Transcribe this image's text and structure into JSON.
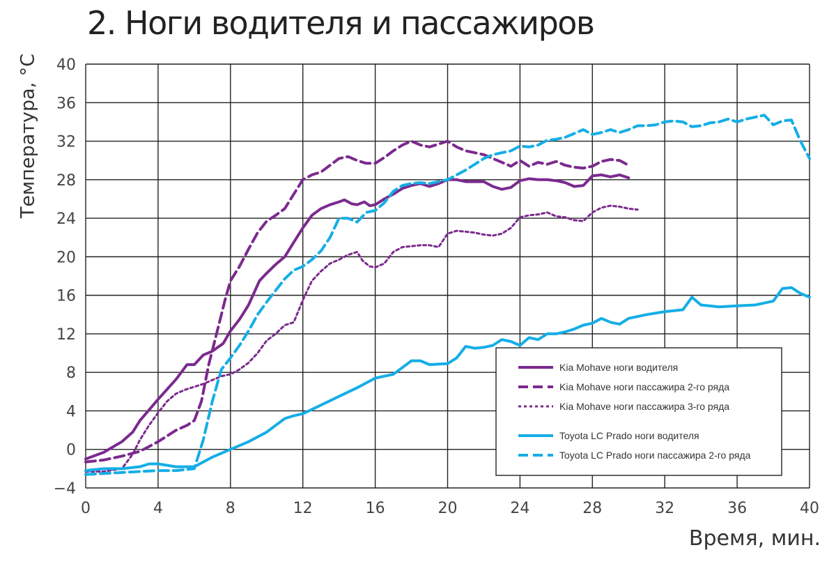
{
  "chart_data": {
    "type": "line",
    "title": "2. Ноги водителя и пассажиров",
    "xlabel": "Время, мин.",
    "ylabel": "Температура, °С",
    "xlim": [
      0,
      40
    ],
    "ylim": [
      -4,
      40
    ],
    "x_ticks": [
      0,
      4,
      8,
      12,
      16,
      20,
      24,
      28,
      32,
      36,
      40
    ],
    "y_ticks": [
      -4,
      0,
      4,
      8,
      12,
      16,
      20,
      24,
      28,
      32,
      36,
      40
    ],
    "x_tick_labels": [
      "0",
      "4",
      "8",
      "12",
      "16",
      "20",
      "24",
      "28",
      "32",
      "36",
      "40"
    ],
    "y_tick_labels": [
      "−4",
      "0",
      "4",
      "8",
      "12",
      "16",
      "20",
      "24",
      "28",
      "32",
      "36",
      "40"
    ],
    "grid": true,
    "legend_position": "bottom-right",
    "series": [
      {
        "name": "Kia Mohave ноги водителя",
        "color": "#7b2a8e",
        "style": "solid",
        "points": [
          [
            0,
            -1
          ],
          [
            1,
            -0.3
          ],
          [
            2,
            0.8
          ],
          [
            2.6,
            1.8
          ],
          [
            3,
            3
          ],
          [
            4,
            5.2
          ],
          [
            5,
            7.3
          ],
          [
            5.6,
            8.8
          ],
          [
            6,
            8.8
          ],
          [
            6.5,
            9.8
          ],
          [
            7,
            10.2
          ],
          [
            7.6,
            11
          ],
          [
            8,
            12.3
          ],
          [
            8.5,
            13.5
          ],
          [
            9,
            15
          ],
          [
            9.6,
            17.5
          ],
          [
            10,
            18.3
          ],
          [
            10.5,
            19.2
          ],
          [
            11,
            20
          ],
          [
            11.5,
            21.5
          ],
          [
            12,
            23
          ],
          [
            12.5,
            24.3
          ],
          [
            13,
            25
          ],
          [
            13.5,
            25.4
          ],
          [
            14,
            25.7
          ],
          [
            14.3,
            25.9
          ],
          [
            14.7,
            25.5
          ],
          [
            15,
            25.4
          ],
          [
            15.4,
            25.7
          ],
          [
            15.7,
            25.3
          ],
          [
            16,
            25.4
          ],
          [
            16.5,
            26
          ],
          [
            17,
            26.5
          ],
          [
            17.5,
            27.1
          ],
          [
            18,
            27.4
          ],
          [
            18.5,
            27.6
          ],
          [
            19,
            27.3
          ],
          [
            19.5,
            27.6
          ],
          [
            20,
            28
          ],
          [
            20.5,
            28
          ],
          [
            21,
            27.8
          ],
          [
            21.5,
            27.8
          ],
          [
            22,
            27.8
          ],
          [
            22.5,
            27.3
          ],
          [
            23,
            27
          ],
          [
            23.5,
            27.2
          ],
          [
            24,
            27.9
          ],
          [
            24.5,
            28.1
          ],
          [
            25,
            28
          ],
          [
            25.5,
            28
          ],
          [
            26,
            27.9
          ],
          [
            26.5,
            27.7
          ],
          [
            27,
            27.3
          ],
          [
            27.5,
            27.4
          ],
          [
            28,
            28.4
          ],
          [
            28.5,
            28.5
          ],
          [
            29,
            28.3
          ],
          [
            29.5,
            28.5
          ],
          [
            30,
            28.2
          ]
        ]
      },
      {
        "name": "Kia Mohave ноги пассажира 2-го ряда",
        "color": "#7b2a8e",
        "style": "dashed",
        "points": [
          [
            0,
            -1.3
          ],
          [
            1,
            -1.1
          ],
          [
            2,
            -0.7
          ],
          [
            3,
            -0.2
          ],
          [
            4,
            0.8
          ],
          [
            5,
            2
          ],
          [
            5.6,
            2.5
          ],
          [
            6,
            3
          ],
          [
            6.4,
            5
          ],
          [
            6.8,
            8.8
          ],
          [
            7.3,
            12.5
          ],
          [
            7.7,
            15.5
          ],
          [
            8,
            17.5
          ],
          [
            8.5,
            19
          ],
          [
            9,
            20.8
          ],
          [
            9.5,
            22.5
          ],
          [
            10,
            23.7
          ],
          [
            10.5,
            24.3
          ],
          [
            11,
            25
          ],
          [
            11.5,
            26.5
          ],
          [
            12,
            28
          ],
          [
            12.5,
            28.5
          ],
          [
            13,
            28.8
          ],
          [
            13.5,
            29.5
          ],
          [
            14,
            30.2
          ],
          [
            14.5,
            30.4
          ],
          [
            15,
            30
          ],
          [
            15.5,
            29.7
          ],
          [
            16,
            29.7
          ],
          [
            16.5,
            30.3
          ],
          [
            17,
            31
          ],
          [
            17.5,
            31.6
          ],
          [
            18,
            32
          ],
          [
            18.5,
            31.6
          ],
          [
            19,
            31.4
          ],
          [
            19.5,
            31.7
          ],
          [
            20,
            32
          ],
          [
            20.5,
            31.4
          ],
          [
            21,
            31
          ],
          [
            21.5,
            30.8
          ],
          [
            22,
            30.6
          ],
          [
            22.5,
            30.2
          ],
          [
            23,
            29.8
          ],
          [
            23.5,
            29.4
          ],
          [
            24,
            30
          ],
          [
            24.5,
            29.4
          ],
          [
            25,
            29.8
          ],
          [
            25.5,
            29.6
          ],
          [
            26,
            29.9
          ],
          [
            26.5,
            29.5
          ],
          [
            27,
            29.3
          ],
          [
            27.5,
            29.2
          ],
          [
            28,
            29.4
          ],
          [
            28.5,
            29.9
          ],
          [
            29,
            30.1
          ],
          [
            29.5,
            30
          ],
          [
            30,
            29.5
          ]
        ]
      },
      {
        "name": "Kia Mohave ноги пассажира 3-го ряда",
        "color": "#7b2a8e",
        "style": "dotted",
        "points": [
          [
            0,
            -2.3
          ],
          [
            1,
            -2.3
          ],
          [
            2,
            -2
          ],
          [
            2.6,
            -0.5
          ],
          [
            3,
            1
          ],
          [
            3.5,
            2.5
          ],
          [
            4,
            3.8
          ],
          [
            4.5,
            5
          ],
          [
            5,
            5.8
          ],
          [
            5.5,
            6.2
          ],
          [
            6,
            6.5
          ],
          [
            6.5,
            6.8
          ],
          [
            7,
            7.2
          ],
          [
            7.5,
            7.6
          ],
          [
            8,
            7.8
          ],
          [
            8.5,
            8.3
          ],
          [
            9,
            9
          ],
          [
            9.5,
            10
          ],
          [
            10,
            11.3
          ],
          [
            10.5,
            12
          ],
          [
            11,
            12.9
          ],
          [
            11.5,
            13.2
          ],
          [
            12,
            15.5
          ],
          [
            12.5,
            17.5
          ],
          [
            13,
            18.5
          ],
          [
            13.5,
            19.3
          ],
          [
            14,
            19.7
          ],
          [
            14.5,
            20.2
          ],
          [
            15,
            20.5
          ],
          [
            15.3,
            19.6
          ],
          [
            15.7,
            19
          ],
          [
            16,
            18.9
          ],
          [
            16.5,
            19.3
          ],
          [
            17,
            20.5
          ],
          [
            17.5,
            21
          ],
          [
            18,
            21.1
          ],
          [
            18.5,
            21.2
          ],
          [
            19,
            21.2
          ],
          [
            19.5,
            21
          ],
          [
            20,
            22.4
          ],
          [
            20.5,
            22.7
          ],
          [
            21,
            22.6
          ],
          [
            21.5,
            22.5
          ],
          [
            22,
            22.3
          ],
          [
            22.5,
            22.2
          ],
          [
            23,
            22.4
          ],
          [
            23.5,
            23
          ],
          [
            24,
            24.1
          ],
          [
            24.5,
            24.3
          ],
          [
            25,
            24.4
          ],
          [
            25.5,
            24.6
          ],
          [
            26,
            24.2
          ],
          [
            26.5,
            24.1
          ],
          [
            27,
            23.8
          ],
          [
            27.5,
            23.7
          ],
          [
            28,
            24.6
          ],
          [
            28.5,
            25.1
          ],
          [
            29,
            25.3
          ],
          [
            29.5,
            25.2
          ],
          [
            30,
            25
          ],
          [
            30.5,
            24.9
          ]
        ]
      },
      {
        "name": "Toyota LC Prado ноги водителя",
        "color": "#15aee6",
        "style": "solid",
        "points": [
          [
            0,
            -2.2
          ],
          [
            1,
            -2
          ],
          [
            2,
            -2
          ],
          [
            3,
            -1.8
          ],
          [
            3.5,
            -1.5
          ],
          [
            4,
            -1.5
          ],
          [
            5,
            -1.8
          ],
          [
            6,
            -1.8
          ],
          [
            7,
            -0.8
          ],
          [
            8,
            0
          ],
          [
            9,
            0.8
          ],
          [
            10,
            1.8
          ],
          [
            10.5,
            2.5
          ],
          [
            11,
            3.2
          ],
          [
            11.5,
            3.5
          ],
          [
            12,
            3.7
          ],
          [
            13,
            4.6
          ],
          [
            14,
            5.5
          ],
          [
            15,
            6.4
          ],
          [
            16,
            7.4
          ],
          [
            17,
            7.8
          ],
          [
            17.5,
            8.5
          ],
          [
            18,
            9.2
          ],
          [
            18.5,
            9.2
          ],
          [
            19,
            8.8
          ],
          [
            20,
            8.9
          ],
          [
            20.5,
            9.5
          ],
          [
            21,
            10.7
          ],
          [
            21.5,
            10.5
          ],
          [
            22,
            10.6
          ],
          [
            22.5,
            10.8
          ],
          [
            23,
            11.4
          ],
          [
            23.5,
            11.2
          ],
          [
            24,
            10.8
          ],
          [
            24.5,
            11.6
          ],
          [
            25,
            11.4
          ],
          [
            25.5,
            12
          ],
          [
            26,
            12
          ],
          [
            26.5,
            12.2
          ],
          [
            27,
            12.5
          ],
          [
            27.5,
            12.9
          ],
          [
            28,
            13.1
          ],
          [
            28.5,
            13.6
          ],
          [
            29,
            13.2
          ],
          [
            29.5,
            13
          ],
          [
            30,
            13.6
          ],
          [
            31,
            14
          ],
          [
            32,
            14.3
          ],
          [
            33,
            14.5
          ],
          [
            33.5,
            15.8
          ],
          [
            34,
            15
          ],
          [
            35,
            14.8
          ],
          [
            36,
            14.9
          ],
          [
            37,
            15
          ],
          [
            37.5,
            15.2
          ],
          [
            38,
            15.4
          ],
          [
            38.5,
            16.7
          ],
          [
            39,
            16.8
          ],
          [
            39.5,
            16.2
          ],
          [
            40,
            15.8
          ]
        ]
      },
      {
        "name": "Toyota LC Prado ноги пассажира 2-го ряда",
        "color": "#15aee6",
        "style": "dashed",
        "points": [
          [
            0,
            -2.6
          ],
          [
            1,
            -2.5
          ],
          [
            2,
            -2.4
          ],
          [
            3,
            -2.3
          ],
          [
            4,
            -2.2
          ],
          [
            5,
            -2.2
          ],
          [
            6,
            -2
          ],
          [
            6.5,
            1
          ],
          [
            7,
            5
          ],
          [
            7.5,
            8.3
          ],
          [
            8,
            9.5
          ],
          [
            8.5,
            10.8
          ],
          [
            9,
            12.3
          ],
          [
            9.5,
            14
          ],
          [
            10,
            15.3
          ],
          [
            10.5,
            16.5
          ],
          [
            11,
            17.7
          ],
          [
            11.5,
            18.6
          ],
          [
            12,
            19
          ],
          [
            12.5,
            19.7
          ],
          [
            13,
            20.6
          ],
          [
            13.5,
            22
          ],
          [
            14,
            24
          ],
          [
            14.5,
            24
          ],
          [
            15,
            23.6
          ],
          [
            15.5,
            24.6
          ],
          [
            16,
            24.8
          ],
          [
            16.5,
            25.6
          ],
          [
            17,
            26.8
          ],
          [
            17.5,
            27.4
          ],
          [
            18,
            27.6
          ],
          [
            18.5,
            27.7
          ],
          [
            19,
            27.6
          ],
          [
            19.5,
            27.8
          ],
          [
            20,
            28
          ],
          [
            20.5,
            28.5
          ],
          [
            21,
            29
          ],
          [
            21.5,
            29.6
          ],
          [
            22,
            30.2
          ],
          [
            22.5,
            30.6
          ],
          [
            23,
            30.8
          ],
          [
            23.5,
            31
          ],
          [
            24,
            31.5
          ],
          [
            24.5,
            31.4
          ],
          [
            25,
            31.6
          ],
          [
            25.5,
            32.1
          ],
          [
            26,
            32.2
          ],
          [
            26.5,
            32.4
          ],
          [
            27,
            32.8
          ],
          [
            27.5,
            33.2
          ],
          [
            28,
            32.7
          ],
          [
            28.5,
            32.9
          ],
          [
            29,
            33.2
          ],
          [
            29.5,
            32.9
          ],
          [
            30,
            33.2
          ],
          [
            30.5,
            33.6
          ],
          [
            31,
            33.6
          ],
          [
            31.5,
            33.7
          ],
          [
            32,
            34
          ],
          [
            32.5,
            34.1
          ],
          [
            33,
            34
          ],
          [
            33.5,
            33.5
          ],
          [
            34,
            33.6
          ],
          [
            34.5,
            33.9
          ],
          [
            35,
            34
          ],
          [
            35.5,
            34.3
          ],
          [
            36,
            34
          ],
          [
            36.5,
            34.3
          ],
          [
            37,
            34.5
          ],
          [
            37.5,
            34.7
          ],
          [
            38,
            33.7
          ],
          [
            38.5,
            34.1
          ],
          [
            39,
            34.2
          ],
          [
            39.5,
            32
          ],
          [
            40,
            30.2
          ]
        ]
      }
    ]
  }
}
